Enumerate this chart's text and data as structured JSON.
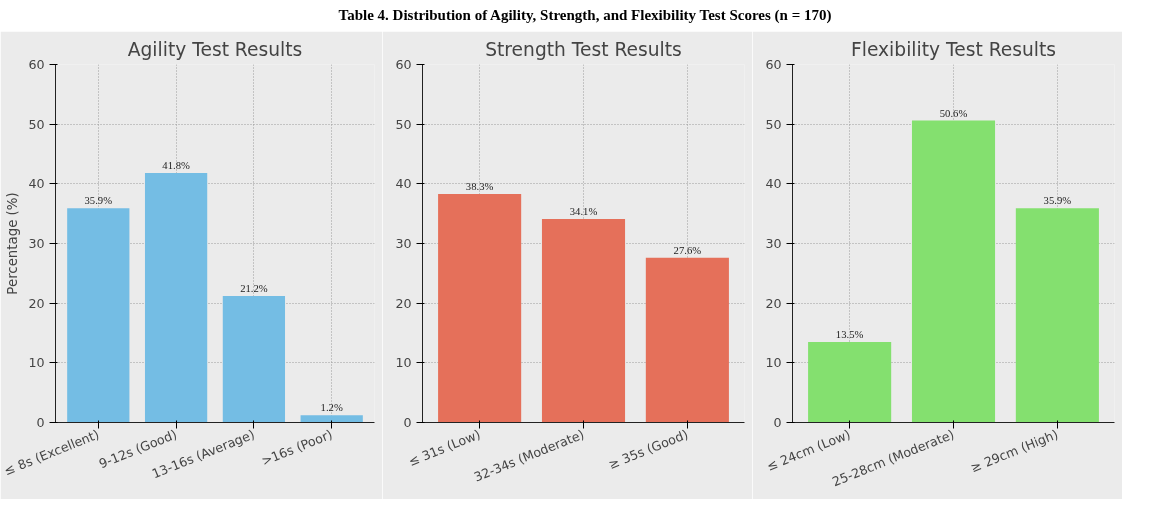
{
  "chart_data": [
    {
      "type": "bar",
      "title": "Agility Test Results",
      "ylabel": "Percentage (%)",
      "annotations": [
        "Table 4. Distribution of Agility, Strength, and Flexibility Test Scores (n = 170)"
      ],
      "categories": [
        "≤ 8s (Excellent)",
        "9-12s (Good)",
        "13-16s (Average)",
        ">16s (Poor)"
      ],
      "values": [
        35.9,
        41.8,
        21.2,
        1.2
      ],
      "value_labels": [
        "35.9%",
        "41.8%",
        "21.2%",
        "1.2%"
      ],
      "color": "#74bde4",
      "ylim": [
        0,
        60
      ],
      "yticks": [
        0,
        10,
        20,
        30,
        40,
        50,
        60
      ],
      "grid": true
    },
    {
      "type": "bar",
      "title": "Strength Test Results",
      "categories": [
        "≤ 31s (Low)",
        "32-34s (Moderate)",
        "≥ 35s (Good)"
      ],
      "values": [
        38.3,
        34.1,
        27.6
      ],
      "value_labels": [
        "38.3%",
        "34.1%",
        "27.6%"
      ],
      "color": "#e5705a",
      "ylim": [
        0,
        60
      ],
      "yticks": [
        0,
        10,
        20,
        30,
        40,
        50,
        60
      ],
      "grid": true
    },
    {
      "type": "bar",
      "title": "Flexibility Test Results",
      "categories": [
        "≤ 24cm (Low)",
        "25-28cm (Moderate)",
        "≥ 29cm (High)"
      ],
      "values": [
        13.5,
        50.6,
        35.9
      ],
      "value_labels": [
        "13.5%",
        "50.6%",
        "35.9%"
      ],
      "color": "#84e06f",
      "ylim": [
        0,
        60
      ],
      "yticks": [
        0,
        10,
        20,
        30,
        40,
        50,
        60
      ],
      "grid": true
    }
  ]
}
